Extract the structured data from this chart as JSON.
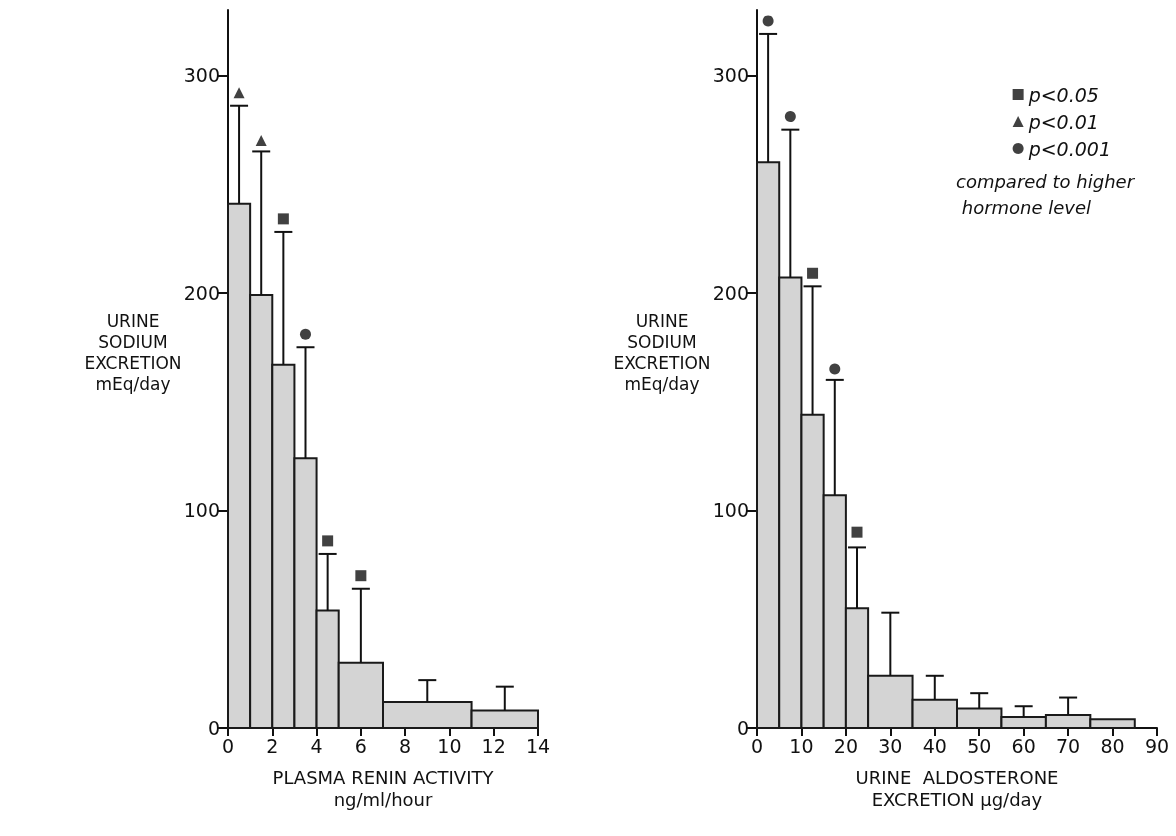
{
  "chart_data": [
    {
      "type": "histogram",
      "xlabel": "PLASMA RENIN ACTIVITY\nng/ml/hour",
      "ylabel": "URINE\nSODIUM\nEXCRETION\nmEq/day",
      "bins": [
        0,
        1,
        2,
        3,
        4,
        5,
        7,
        11,
        14
      ],
      "values": [
        241,
        199,
        167,
        124,
        54,
        30,
        12,
        8
      ],
      "errors": [
        [
          241,
          286
        ],
        [
          199,
          265
        ],
        [
          167,
          228
        ],
        [
          124,
          175
        ],
        [
          54,
          80
        ],
        [
          30,
          64
        ],
        [
          12,
          22
        ],
        [
          8,
          19
        ]
      ],
      "color": "#d4d4d4",
      "xlim": [
        0,
        14
      ],
      "xticks": [
        0,
        2,
        4,
        6,
        8,
        10,
        12,
        14
      ],
      "ylim": [
        0,
        330
      ],
      "yticks": [
        0,
        100,
        200,
        300
      ],
      "grid": false,
      "legend": false,
      "series": [
        {
          "type": "scatter",
          "marker": "square",
          "color": "#111111",
          "x": [
            2.5,
            4.5,
            6
          ],
          "values": [
            234,
            86,
            70
          ]
        },
        {
          "type": "scatter",
          "marker": "triangle",
          "color": "#111111",
          "x": [
            0.5,
            1.5
          ],
          "values": [
            292,
            270
          ]
        },
        {
          "type": "scatter",
          "marker": "circle",
          "color": "#111111",
          "x": [
            3.5
          ],
          "values": [
            181
          ]
        }
      ]
    },
    {
      "type": "histogram",
      "xlabel": "URINE  ALDOSTERONE\nEXCRETION μg/day",
      "ylabel": "URINE\nSODIUM\nEXCRETION\nmEq/day",
      "bins": [
        0,
        5,
        10,
        15,
        20,
        25,
        35,
        45,
        55,
        65,
        75,
        85
      ],
      "values": [
        260,
        207,
        144,
        107,
        55,
        24,
        13,
        9,
        5,
        6,
        4
      ],
      "errors": [
        [
          260,
          319
        ],
        [
          207,
          275
        ],
        [
          144,
          203
        ],
        [
          107,
          160
        ],
        [
          55,
          83
        ],
        [
          24,
          53
        ],
        [
          13,
          24
        ],
        [
          9,
          16
        ],
        [
          5,
          10
        ],
        [
          6,
          14
        ],
        null
      ],
      "color": "#d4d4d4",
      "xlim": [
        0,
        90
      ],
      "xticks": [
        0,
        10,
        20,
        30,
        40,
        50,
        60,
        70,
        80,
        90
      ],
      "ylim": [
        0,
        330
      ],
      "yticks": [
        0,
        100,
        200,
        300
      ],
      "grid": false,
      "legend": "top right",
      "annotations": [
        "compared to higher hormone level"
      ],
      "series": [
        {
          "type": "scatter",
          "name": "p<0.05",
          "marker": "square",
          "color": "#111111",
          "x": [
            12.5,
            22.5
          ],
          "values": [
            209,
            90
          ]
        },
        {
          "type": "scatter",
          "name": "p<0.01",
          "marker": "triangle",
          "color": "#111111"
        },
        {
          "type": "scatter",
          "name": "p<0.001",
          "marker": "circle",
          "color": "#111111",
          "x": [
            2.5,
            7.5,
            17.5
          ],
          "values": [
            325,
            281,
            165
          ]
        }
      ]
    }
  ]
}
